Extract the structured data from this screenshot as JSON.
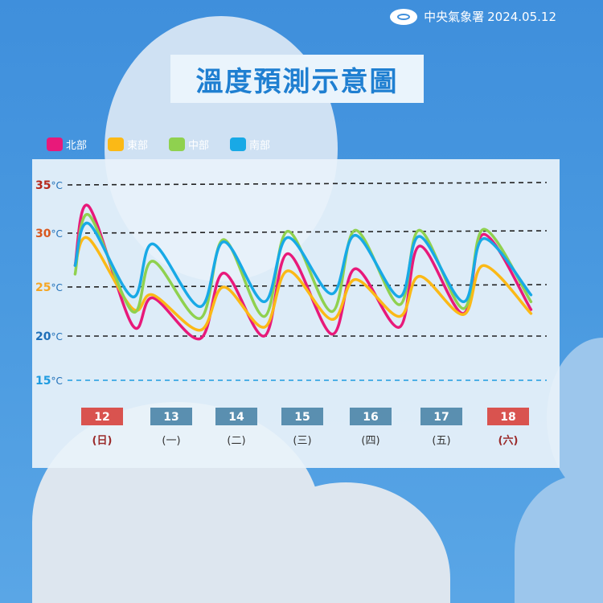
{
  "header": {
    "agency": "中央氣象署",
    "date": "2024.05.12",
    "logo_icon": "cwa-logo-icon"
  },
  "title": "溫度預測示意圖",
  "chart_data": {
    "type": "line",
    "title": "溫度預測示意圖",
    "ylabel": "",
    "yticks": [
      {
        "value": 35,
        "label": "35",
        "unit": "°C",
        "color": "#b5281c"
      },
      {
        "value": 30,
        "label": "30",
        "unit": "°C",
        "color": "#d9581e"
      },
      {
        "value": 25,
        "label": "25",
        "unit": "°C",
        "color": "#f5a623"
      },
      {
        "value": 20,
        "label": "20",
        "unit": "°C",
        "color": "#1f6fb8"
      },
      {
        "value": 15,
        "label": "15",
        "unit": "°C",
        "color": "#1e9be0"
      }
    ],
    "ylim": [
      15,
      35
    ],
    "grid": true,
    "legend_position": "top-left",
    "days": [
      {
        "date": "12",
        "weekday": "(日)",
        "holiday": true
      },
      {
        "date": "13",
        "weekday": "(一)",
        "holiday": false
      },
      {
        "date": "14",
        "weekday": "(二)",
        "holiday": false
      },
      {
        "date": "15",
        "weekday": "(三)",
        "holiday": false
      },
      {
        "date": "16",
        "weekday": "(四)",
        "holiday": false
      },
      {
        "date": "17",
        "weekday": "(五)",
        "holiday": false
      },
      {
        "date": "18",
        "weekday": "(六)",
        "holiday": true
      }
    ],
    "x": [
      11.6,
      11.8,
      12.45,
      12.75,
      13.45,
      13.8,
      14.4,
      14.75,
      15.4,
      15.75,
      16.4,
      16.7,
      17.35,
      17.65,
      18.35
    ],
    "series": [
      {
        "name": "北部",
        "color": "#e8197a",
        "values": [
          27.0,
          32.8,
          21.1,
          23.9,
          19.7,
          26.3,
          20.0,
          28.1,
          20.2,
          26.7,
          20.9,
          28.8,
          22.3,
          29.9,
          22.7
        ]
      },
      {
        "name": "東部",
        "color": "#fbb916",
        "values": [
          27.0,
          29.5,
          22.8,
          24.2,
          20.6,
          25.0,
          20.9,
          26.5,
          21.7,
          25.7,
          22.0,
          26.0,
          22.2,
          27.0,
          22.3
        ]
      },
      {
        "name": "中部",
        "color": "#8fd14f",
        "values": [
          26.2,
          31.9,
          22.5,
          27.4,
          21.8,
          29.4,
          22.0,
          30.2,
          22.5,
          30.3,
          23.2,
          30.3,
          22.8,
          30.4,
          23.5
        ]
      },
      {
        "name": "南部",
        "color": "#18a9e6",
        "values": [
          27.0,
          31.0,
          24.0,
          29.0,
          23.0,
          29.2,
          23.5,
          29.6,
          24.3,
          29.8,
          24.0,
          29.7,
          23.5,
          29.5,
          24.2
        ]
      }
    ]
  },
  "colors": {
    "holiday_box": "#d9534f",
    "weekday_box": "#5a8fb0",
    "holiday_text": "#9a2a2a",
    "weekday_text": "#333333"
  }
}
